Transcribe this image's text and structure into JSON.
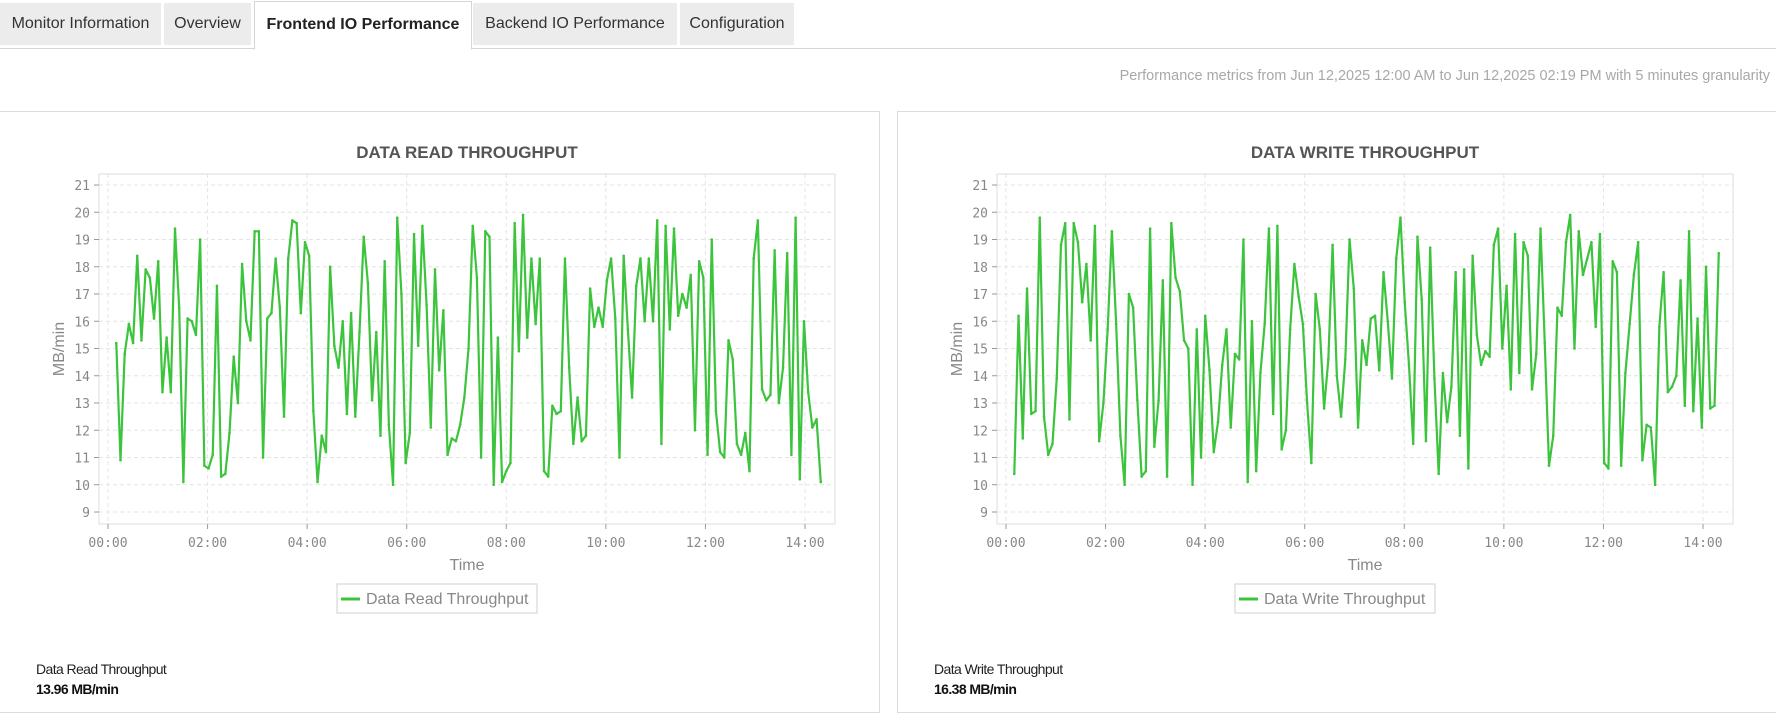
{
  "tabs": [
    {
      "label": "Monitor Information",
      "active": false
    },
    {
      "label": "Overview",
      "active": false
    },
    {
      "label": "Frontend IO Performance",
      "active": true
    },
    {
      "label": "Backend IO Performance",
      "active": false
    },
    {
      "label": "Configuration",
      "active": false
    }
  ],
  "performance_range_text": "Performance metrics from Jun 12,2025 12:00 AM to Jun 12,2025 02:19 PM with 5 minutes granularity",
  "colors": {
    "series": "#3cc43c",
    "grid": "#e4e4e4",
    "axis_text": "#888888",
    "title": "#555555"
  },
  "summaries": [
    {
      "label": "Data Read Throughput",
      "value": "13.96 MB/min"
    },
    {
      "label": "Data Write Throughput",
      "value": "16.38 MB/min"
    }
  ],
  "chart_data": [
    {
      "type": "line",
      "title": "DATA READ THROUGHPUT",
      "xlabel": "Time",
      "ylabel": "MB/min",
      "x_ticks": [
        "00:00",
        "02:00",
        "04:00",
        "06:00",
        "08:00",
        "10:00",
        "12:00",
        "14:00"
      ],
      "y_ticks": [
        9,
        10,
        11,
        12,
        13,
        14,
        15,
        16,
        17,
        18,
        19,
        20,
        21
      ],
      "ylim": [
        8.5,
        21.4
      ],
      "x_start": "00:10",
      "x_end": "14:19",
      "grid": true,
      "legend": "bottom",
      "series": [
        {
          "name": "Data Read Throughput",
          "color": "#3cc43c",
          "values": [
            15.2,
            10.9,
            14.8,
            15.9,
            15.2,
            18.4,
            15.3,
            17.9,
            17.6,
            16.1,
            18.2,
            13.4,
            15.4,
            13.4,
            19.4,
            16.5,
            10.1,
            16.1,
            16.0,
            15.5,
            19.0,
            10.7,
            10.6,
            11.1,
            17.3,
            10.3,
            10.4,
            11.9,
            14.7,
            13.0,
            18.1,
            16.0,
            15.3,
            19.3,
            19.3,
            11.0,
            16.1,
            16.3,
            18.3,
            16.5,
            12.5,
            18.3,
            19.7,
            19.6,
            16.3,
            18.9,
            18.4,
            12.7,
            10.1,
            11.8,
            11.2,
            18.0,
            15.1,
            14.3,
            16.0,
            12.6,
            16.3,
            12.5,
            15.6,
            19.1,
            17.4,
            13.1,
            15.6,
            11.8,
            18.2,
            12.2,
            10.0,
            19.8,
            17.0,
            10.8,
            11.9,
            19.2,
            15.1,
            19.5,
            16.6,
            12.1,
            17.9,
            14.2,
            16.4,
            11.1,
            11.7,
            11.6,
            12.2,
            13.2,
            15.0,
            19.5,
            17.6,
            11.0,
            19.3,
            19.1,
            10.0,
            15.4,
            10.1,
            10.5,
            10.8,
            19.6,
            14.9,
            19.9,
            15.4,
            18.3,
            15.9,
            18.3,
            10.5,
            10.3,
            12.9,
            12.6,
            12.7,
            18.3,
            14.3,
            11.5,
            13.2,
            11.6,
            11.8,
            17.2,
            15.8,
            16.5,
            15.8,
            17.5,
            18.3,
            16.1,
            11.0,
            18.4,
            15.7,
            13.2,
            17.3,
            18.3,
            16.0,
            18.3,
            16.0,
            19.7,
            11.5,
            19.5,
            15.7,
            19.4,
            16.2,
            17.0,
            16.5,
            17.7,
            12.0,
            18.2,
            17.6,
            11.1,
            19.0,
            12.7,
            11.2,
            11.0,
            15.3,
            14.6,
            11.5,
            11.1,
            11.9,
            10.5,
            18.3,
            19.7,
            13.5,
            13.1,
            13.3,
            18.6,
            13.0,
            14.3,
            18.5,
            11.1,
            19.8,
            10.2,
            16.0,
            13.4,
            12.1,
            12.4,
            10.1
          ]
        }
      ]
    },
    {
      "type": "line",
      "title": "DATA WRITE THROUGHPUT",
      "xlabel": "Time",
      "ylabel": "MB/min",
      "x_ticks": [
        "00:00",
        "02:00",
        "04:00",
        "06:00",
        "08:00",
        "10:00",
        "12:00",
        "14:00"
      ],
      "y_ticks": [
        9,
        10,
        11,
        12,
        13,
        14,
        15,
        16,
        17,
        18,
        19,
        20,
        21
      ],
      "ylim": [
        8.5,
        21.4
      ],
      "x_start": "00:10",
      "x_end": "14:19",
      "grid": true,
      "legend": "bottom",
      "series": [
        {
          "name": "Data Write Throughput",
          "color": "#3cc43c",
          "values": [
            10.4,
            16.2,
            11.7,
            17.2,
            12.6,
            12.7,
            19.8,
            12.5,
            11.1,
            11.5,
            13.9,
            18.8,
            19.6,
            12.4,
            19.6,
            18.9,
            16.7,
            18.1,
            15.3,
            19.5,
            11.6,
            13.0,
            15.7,
            19.3,
            15.9,
            11.8,
            10.0,
            17.0,
            16.5,
            13.1,
            10.3,
            10.5,
            19.4,
            11.4,
            13.1,
            17.5,
            10.3,
            19.6,
            17.6,
            17.1,
            15.3,
            15.0,
            10.0,
            15.7,
            11.0,
            16.2,
            14.2,
            11.2,
            12.3,
            14.4,
            15.7,
            12.1,
            14.8,
            14.6,
            19.0,
            10.1,
            16.0,
            10.5,
            14.1,
            15.9,
            19.4,
            12.6,
            19.5,
            11.3,
            12.0,
            15.7,
            18.1,
            16.9,
            15.9,
            13.0,
            10.8,
            17.0,
            15.7,
            12.8,
            14.6,
            18.8,
            14.0,
            12.5,
            14.6,
            19.0,
            17.2,
            12.1,
            15.3,
            14.4,
            16.1,
            16.2,
            14.2,
            17.8,
            16.0,
            13.9,
            18.3,
            19.8,
            16.7,
            14.4,
            11.5,
            19.1,
            16.8,
            11.6,
            18.7,
            13.9,
            10.4,
            14.1,
            12.3,
            13.6,
            17.8,
            11.8,
            17.9,
            10.6,
            18.4,
            15.5,
            14.4,
            14.9,
            14.7,
            18.8,
            19.4,
            15.0,
            17.3,
            13.5,
            19.2,
            14.1,
            18.9,
            18.4,
            13.5,
            14.8,
            19.4,
            15.2,
            10.7,
            11.8,
            16.5,
            16.2,
            18.9,
            19.9,
            15.0,
            19.3,
            17.7,
            18.3,
            18.9,
            15.8,
            19.2,
            10.8,
            10.6,
            18.2,
            17.8,
            10.7,
            14.1,
            15.9,
            17.7,
            18.9,
            10.9,
            12.2,
            12.1,
            10.0,
            15.8,
            17.8,
            13.4,
            13.6,
            14.0,
            17.5,
            12.9,
            19.3,
            12.7,
            16.1,
            12.1,
            18.0,
            12.8,
            12.9,
            18.5
          ]
        }
      ]
    }
  ]
}
